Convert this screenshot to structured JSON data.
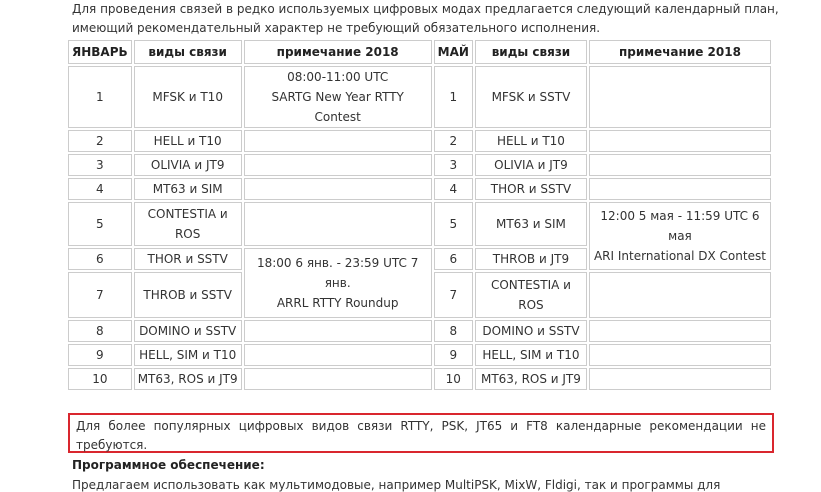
{
  "intro": [
    "Для проведения связей в редко используемых цифровых модах предлагается следующий календарный план,",
    "имеющий рекомендательный характер не требующий обязательного исполнения."
  ],
  "table": {
    "header": [
      "ЯНВАРЬ",
      "виды связи",
      "примечание 2018",
      "МАЙ",
      "виды связи",
      "примечание 2018"
    ],
    "rows": [
      [
        1,
        "MFSK и T10",
        1,
        "MFSK и SSTV"
      ],
      [
        2,
        "HELL и T10",
        2,
        "HELL и T10"
      ],
      [
        3,
        "OLIVIA и JT9",
        3,
        "OLIVIA и JT9"
      ],
      [
        4,
        "MT63 и SIM",
        4,
        "THOR и SSTV"
      ],
      [
        5,
        "CONTESTIA и ROS",
        5,
        "MT63 и SIM"
      ],
      [
        6,
        "THOR и SSTV",
        6,
        "THROB и JT9"
      ],
      [
        7,
        "THROB и SSTV",
        7,
        "CONTESTIA и ROS"
      ],
      [
        8,
        "DOMINO и SSTV",
        8,
        "DOMINO и SSTV"
      ],
      [
        9,
        "HELL, SIM и T10",
        9,
        "HELL, SIM и T10"
      ],
      [
        10,
        "MT63, ROS и JT9",
        10,
        "MT63, ROS и JT9"
      ]
    ],
    "jan_notes": [
      [
        "08:00-11:00 UTC",
        "SARTG New Year RTTY",
        "Contest"
      ],
      [
        "18:00 6 янв. - 23:59 UTC 7 янв.",
        "ARRL RTTY Roundup"
      ]
    ],
    "may_notes": [
      [
        "12:00 5 мая - 11:59 UTC 6 мая",
        "ARI International DX Contest"
      ]
    ]
  },
  "notice": "Для более популярных цифровых видов связи RTTY, PSK, JT65 и FT8 календарные рекомендации не требуются.",
  "software_heading": "Программное обеспечение:",
  "software_text": "Предлагаем использовать как мультимодовые, например MultiPSK, MixW, Fldigi, так и программы для"
}
